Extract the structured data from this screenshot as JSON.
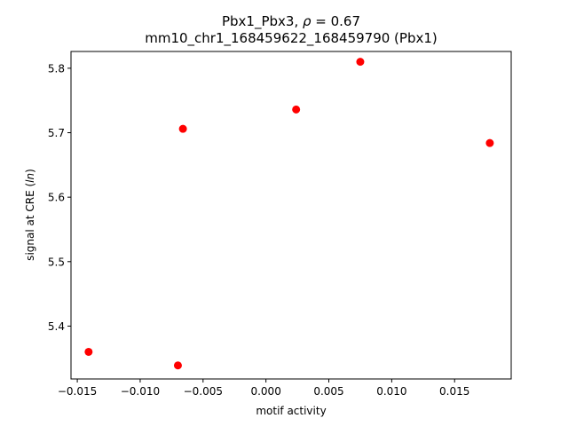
{
  "chart_data": {
    "type": "scatter",
    "title_line1_prefix": "Pbx1_Pbx3, ",
    "title_line1_rho": "ρ",
    "title_line1_suffix": " = 0.67",
    "title_line2": "mm10_chr1_168459622_168459790 (Pbx1)",
    "xlabel": "motif activity",
    "ylabel_prefix": "signal at CRE (",
    "ylabel_italic": "ln",
    "ylabel_suffix": ")",
    "xlim": [
      -0.0155,
      0.0195
    ],
    "ylim": [
      5.318,
      5.826
    ],
    "x_ticks": [
      -0.015,
      -0.01,
      -0.005,
      0.0,
      0.005,
      0.01,
      0.015
    ],
    "x_tick_labels": [
      "−0.015",
      "−0.010",
      "−0.005",
      "0.000",
      "0.005",
      "0.010",
      "0.015"
    ],
    "y_ticks": [
      5.4,
      5.5,
      5.6,
      5.7,
      5.8
    ],
    "y_tick_labels": [
      "5.4",
      "5.5",
      "5.6",
      "5.7",
      "5.8"
    ],
    "grid": false,
    "marker_color": "#ff0000",
    "points": [
      {
        "x": -0.0141,
        "y": 5.36
      },
      {
        "x": -0.007,
        "y": 5.339
      },
      {
        "x": -0.0066,
        "y": 5.706
      },
      {
        "x": 0.0024,
        "y": 5.736
      },
      {
        "x": 0.0075,
        "y": 5.81
      },
      {
        "x": 0.0178,
        "y": 5.684
      }
    ]
  }
}
